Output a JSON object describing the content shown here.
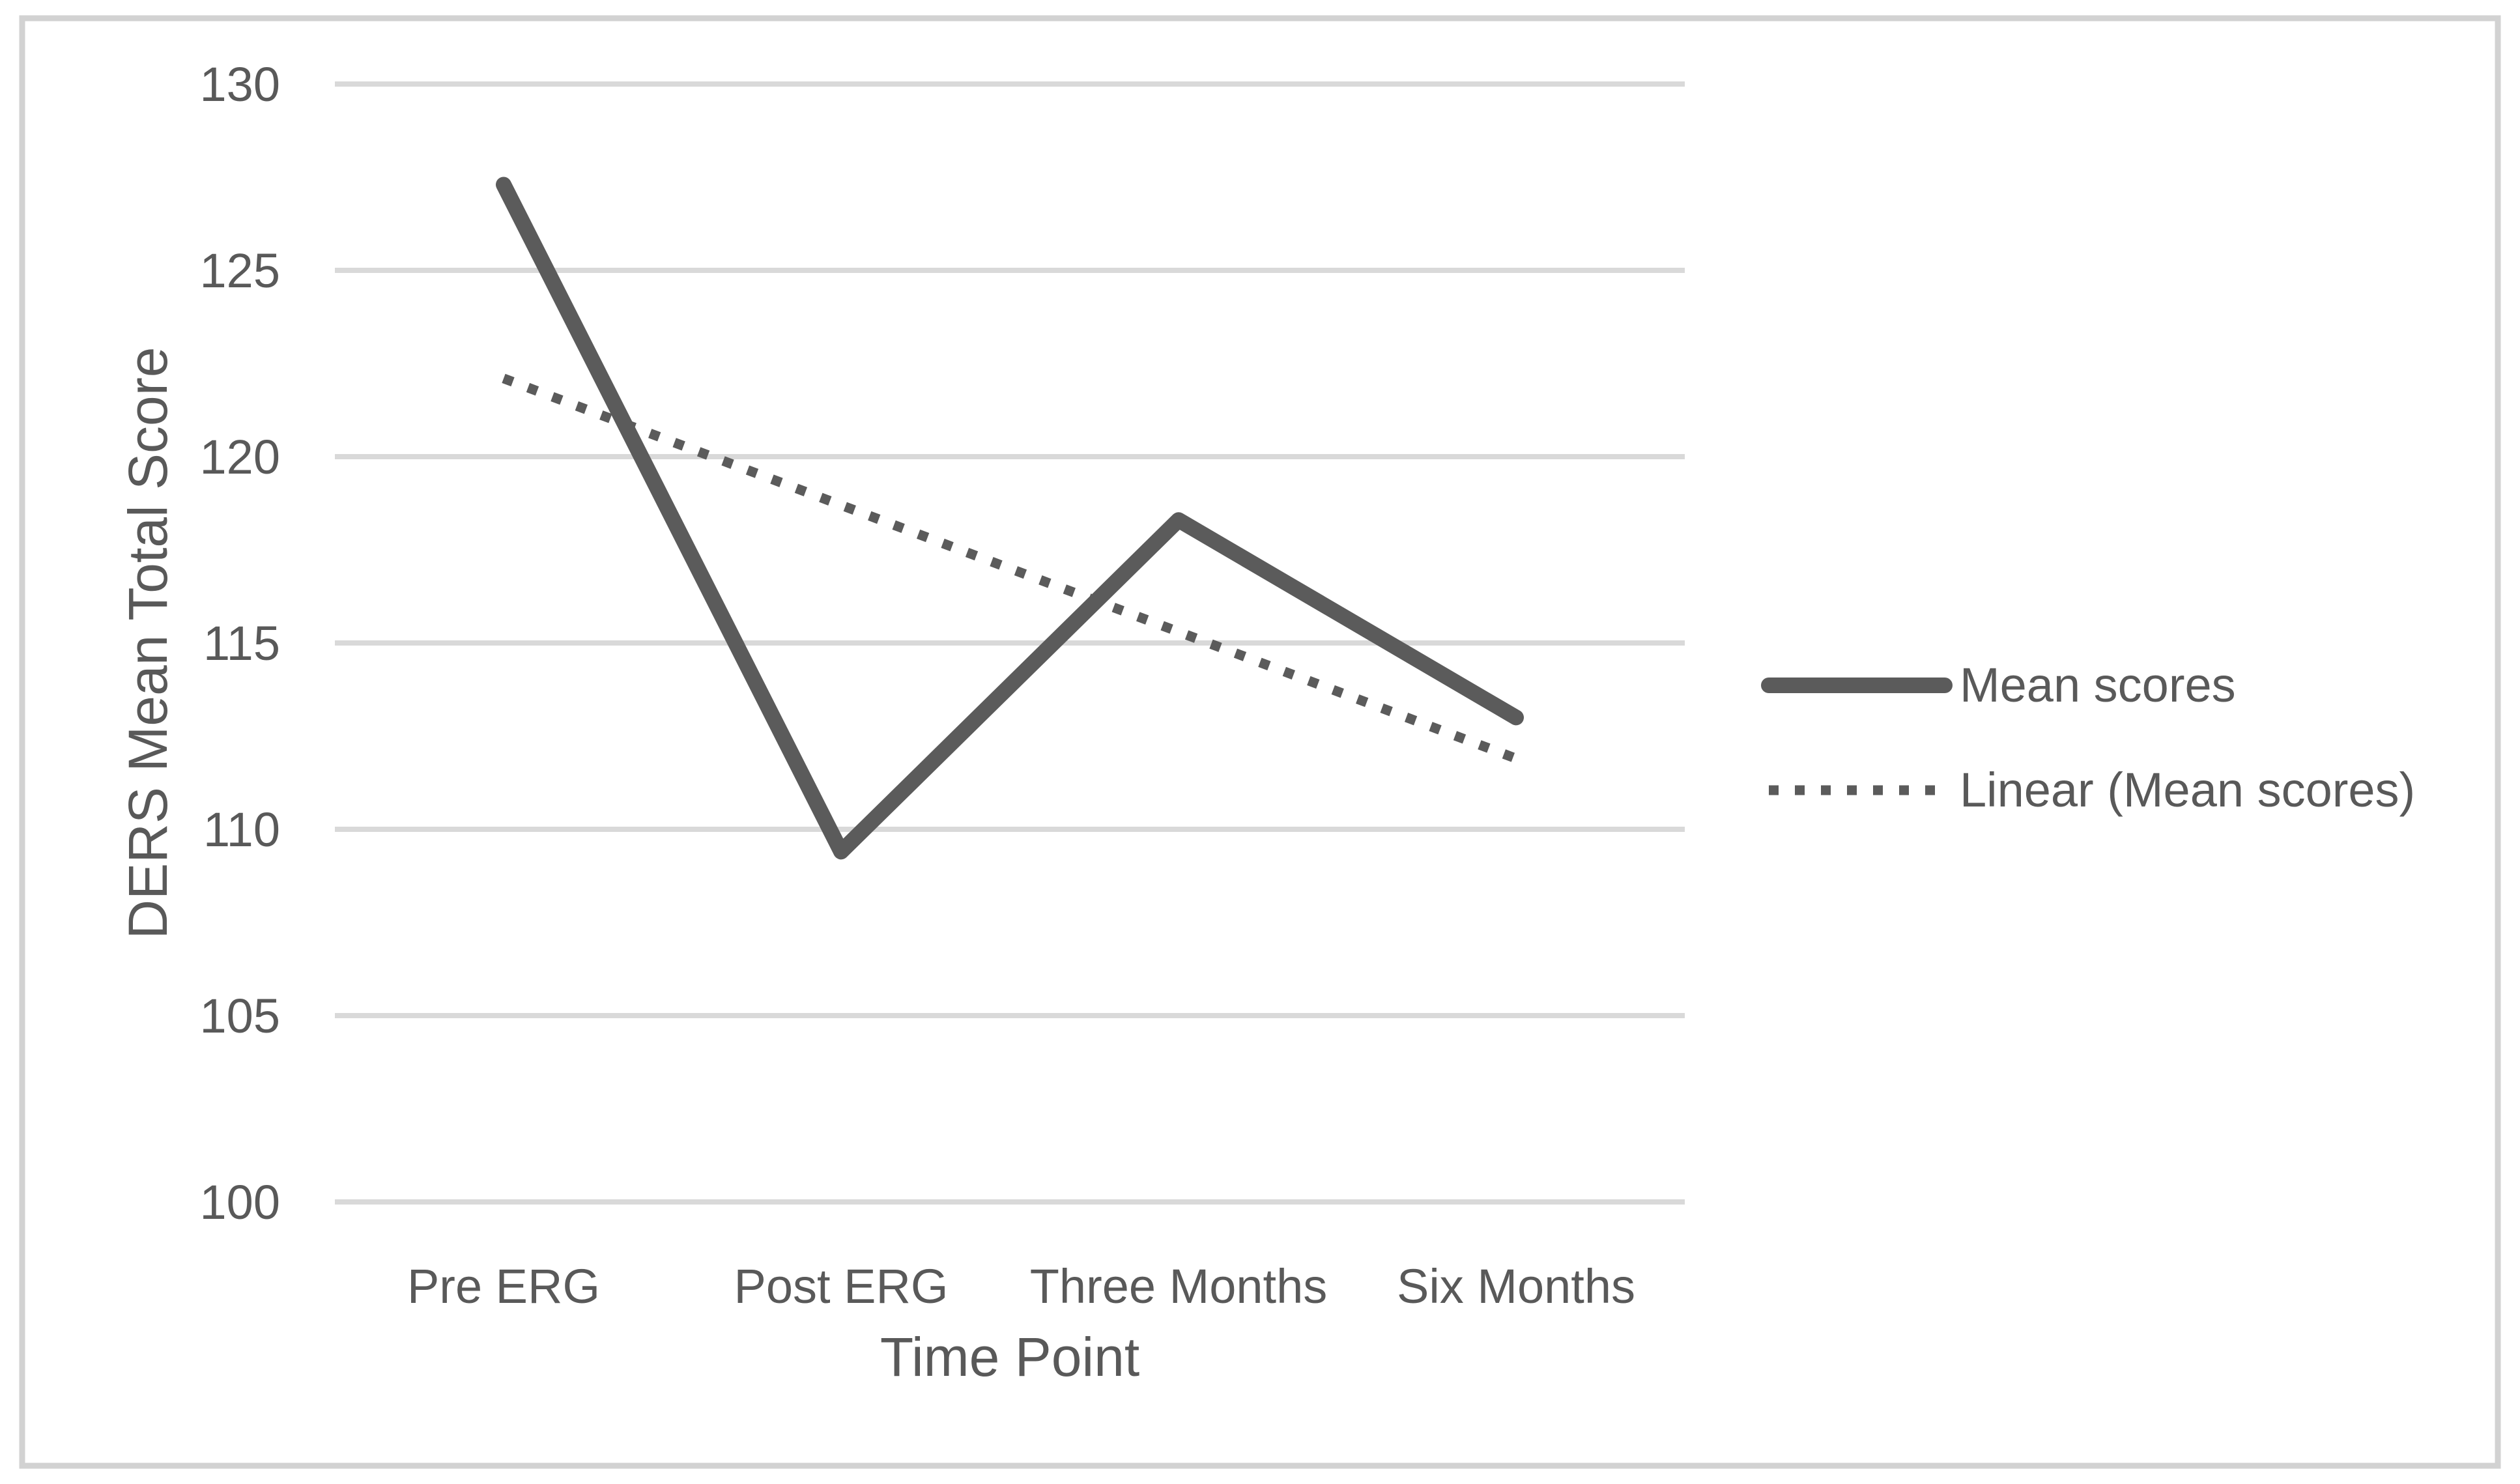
{
  "chart_data": {
    "type": "line",
    "categories": [
      "Pre ERG",
      "Post ERG",
      "Three Months",
      "Six Months"
    ],
    "series": [
      {
        "name": "Mean scores",
        "values": [
          127.3,
          109.4,
          118.3,
          113.0
        ],
        "style": "solid"
      }
    ],
    "trendline": {
      "name": "Linear (Mean scores)",
      "start": 122.1,
      "end": 111.9,
      "style": "dotted"
    },
    "xlabel": "Time Point",
    "ylabel": "DERS Mean Total Score",
    "ylim": [
      100,
      130
    ],
    "yticks": [
      130,
      125,
      120,
      115,
      110,
      105,
      100
    ],
    "grid": "horizontal",
    "legend_position": "right"
  },
  "legend": {
    "items": [
      {
        "label": "Mean scores",
        "swatch": "solid-line"
      },
      {
        "label": "Linear (Mean scores)",
        "swatch": "dotted-line"
      }
    ]
  },
  "colors": {
    "line": "#5b5b5b",
    "trend": "#5b5b5b",
    "text": "#595959",
    "grid": "#d9d9d9",
    "border": "#d2d2d2",
    "background": "#ffffff"
  }
}
